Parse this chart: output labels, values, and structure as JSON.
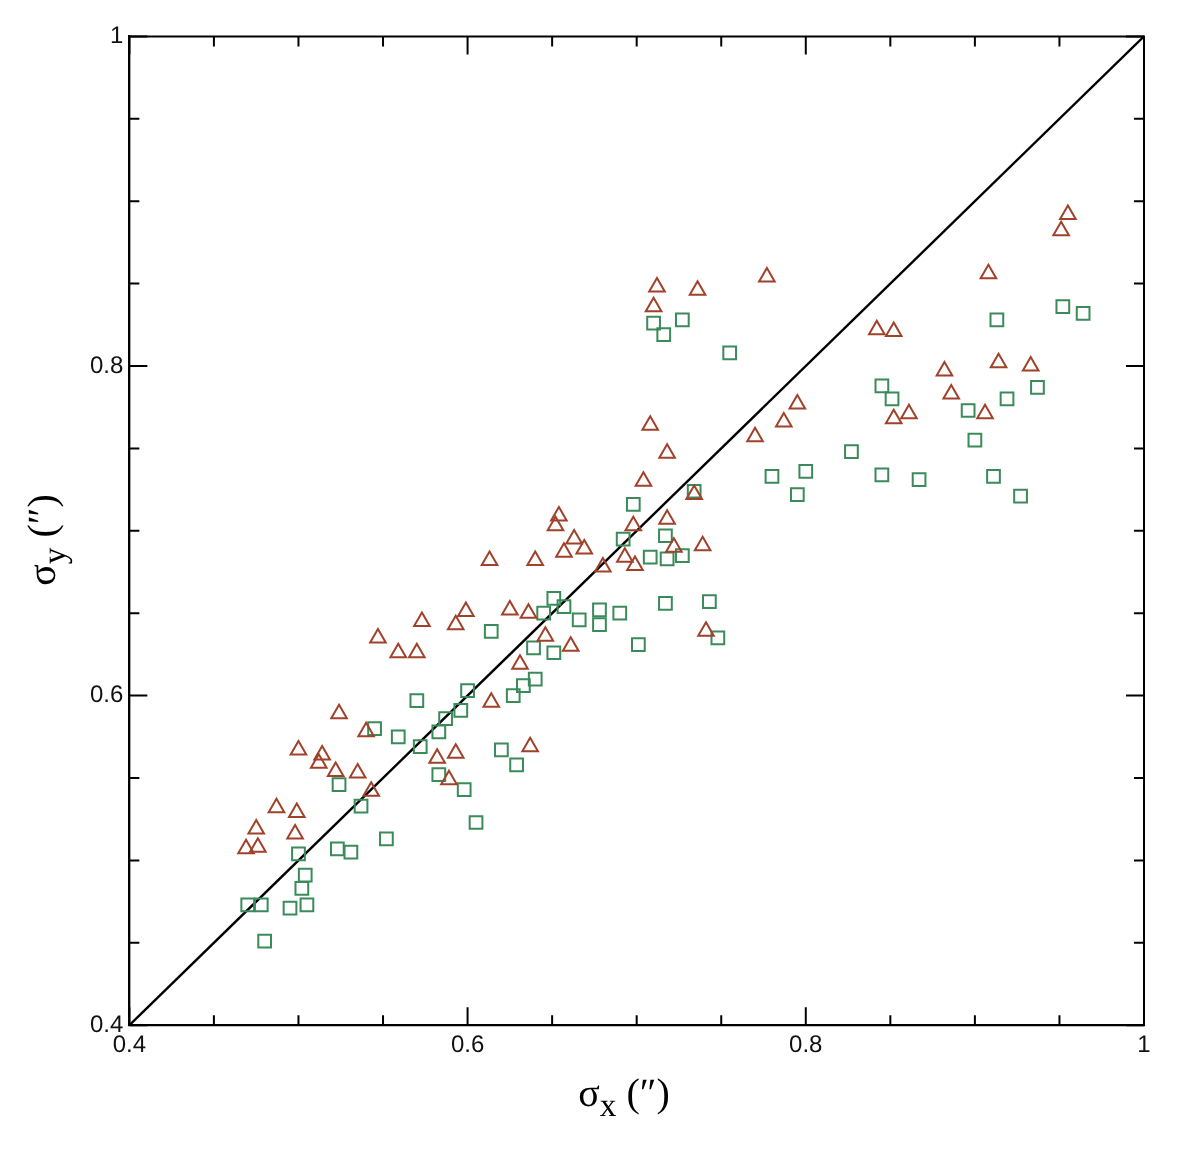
{
  "chart_data": {
    "type": "scatter",
    "xlabel": "σ$_{x}$ (″)",
    "ylabel": "σ$_{y}$ (″)",
    "xlim": [
      0.4,
      1
    ],
    "ylim": [
      0.4,
      1
    ],
    "grid": false,
    "xticks": [
      0.4,
      {
        "value": 0.45,
        "label": null
      },
      {
        "value": 0.5,
        "label": null
      },
      {
        "value": 0.55,
        "label": null
      },
      0.6,
      {
        "value": 0.65,
        "label": null
      },
      {
        "value": 0.7,
        "label": null
      },
      {
        "value": 0.75,
        "label": null
      },
      0.8,
      {
        "value": 0.85,
        "label": null
      },
      {
        "value": 0.9,
        "label": null
      },
      {
        "value": 0.95,
        "label": null
      },
      1
    ],
    "yticks": [
      0.4,
      {
        "value": 0.45,
        "label": null
      },
      {
        "value": 0.5,
        "label": null
      },
      {
        "value": 0.55,
        "label": null
      },
      0.6,
      {
        "value": 0.65,
        "label": null
      },
      {
        "value": 0.7,
        "label": null
      },
      {
        "value": 0.75,
        "label": null
      },
      0.8,
      {
        "value": 0.85,
        "label": null
      },
      {
        "value": 0.9,
        "label": null
      },
      {
        "value": 0.95,
        "label": null
      },
      1
    ],
    "series": [
      {
        "type": "scatter",
        "marker": "triangle",
        "color": "#a0412a",
        "x": [
          0.573,
          0.599,
          0.625,
          0.593,
          0.547,
          0.559,
          0.57,
          0.524,
          0.54,
          0.5,
          0.514,
          0.512,
          0.522,
          0.535,
          0.543,
          0.582,
          0.593,
          0.589,
          0.614,
          0.487,
          0.499,
          0.475,
          0.498,
          0.469,
          0.476,
          0.631,
          0.704,
          0.654,
          0.652,
          0.663,
          0.669,
          0.657,
          0.613,
          0.64,
          0.68,
          0.693,
          0.699,
          0.698,
          0.718,
          0.722,
          0.739,
          0.734,
          0.636,
          0.646,
          0.661,
          0.741,
          0.637,
          0.712,
          0.736,
          0.777,
          0.71,
          0.842,
          0.795,
          0.787,
          0.77,
          0.708,
          0.718,
          0.955,
          0.951,
          0.908,
          0.852,
          0.882,
          0.914,
          0.933,
          0.886,
          0.852,
          0.861,
          0.906
        ],
        "values": [
          0.645,
          0.651,
          0.652,
          0.643,
          0.635,
          0.626,
          0.626,
          0.589,
          0.578,
          0.567,
          0.564,
          0.559,
          0.554,
          0.553,
          0.542,
          0.562,
          0.565,
          0.549,
          0.596,
          0.532,
          0.529,
          0.519,
          0.516,
          0.507,
          0.508,
          0.619,
          0.73,
          0.709,
          0.703,
          0.695,
          0.689,
          0.687,
          0.682,
          0.682,
          0.678,
          0.684,
          0.679,
          0.703,
          0.707,
          0.69,
          0.691,
          0.722,
          0.65,
          0.636,
          0.63,
          0.639,
          0.569,
          0.848,
          0.846,
          0.854,
          0.836,
          0.822,
          0.777,
          0.766,
          0.757,
          0.764,
          0.747,
          0.892,
          0.882,
          0.856,
          0.821,
          0.797,
          0.802,
          0.8,
          0.783,
          0.768,
          0.771,
          0.771
        ]
      },
      {
        "type": "scatter",
        "marker": "square",
        "color": "#3a8a5a",
        "x": [
          0.614,
          0.57,
          0.6,
          0.587,
          0.596,
          0.545,
          0.559,
          0.583,
          0.572,
          0.524,
          0.537,
          0.627,
          0.62,
          0.629,
          0.583,
          0.598,
          0.605,
          0.552,
          0.523,
          0.531,
          0.5,
          0.504,
          0.502,
          0.47,
          0.478,
          0.495,
          0.505,
          0.48,
          0.698,
          0.734,
          0.78,
          0.795,
          0.8,
          0.717,
          0.708,
          0.718,
          0.727,
          0.692,
          0.651,
          0.657,
          0.645,
          0.666,
          0.678,
          0.678,
          0.69,
          0.717,
          0.743,
          0.639,
          0.651,
          0.701,
          0.748,
          0.64,
          0.633,
          0.71,
          0.716,
          0.727,
          0.755,
          0.827,
          0.845,
          0.845,
          0.913,
          0.952,
          0.964,
          0.851,
          0.896,
          0.919,
          0.937,
          0.9,
          0.867,
          0.911,
          0.927
        ],
        "values": [
          0.639,
          0.597,
          0.603,
          0.586,
          0.591,
          0.58,
          0.575,
          0.578,
          0.569,
          0.546,
          0.533,
          0.6,
          0.567,
          0.558,
          0.552,
          0.543,
          0.523,
          0.513,
          0.507,
          0.505,
          0.504,
          0.491,
          0.483,
          0.473,
          0.473,
          0.471,
          0.473,
          0.451,
          0.716,
          0.724,
          0.733,
          0.722,
          0.736,
          0.697,
          0.684,
          0.683,
          0.685,
          0.695,
          0.659,
          0.654,
          0.65,
          0.646,
          0.652,
          0.643,
          0.65,
          0.656,
          0.657,
          0.629,
          0.626,
          0.631,
          0.635,
          0.61,
          0.606,
          0.826,
          0.819,
          0.828,
          0.808,
          0.748,
          0.788,
          0.734,
          0.828,
          0.836,
          0.832,
          0.78,
          0.773,
          0.78,
          0.787,
          0.755,
          0.731,
          0.733,
          0.721
        ]
      },
      {
        "type": "line",
        "marker": "none",
        "line_style": "solid",
        "color": "#000000",
        "x": [
          0.4,
          1
        ],
        "values": [
          0.4,
          1
        ]
      }
    ]
  }
}
